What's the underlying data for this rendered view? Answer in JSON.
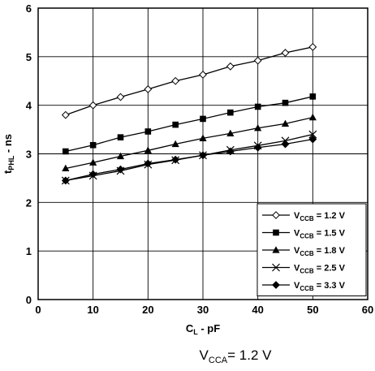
{
  "chart_data": {
    "type": "line",
    "title": "",
    "xlabel": {
      "main": "C",
      "sub": "L",
      "rest": " - pF"
    },
    "ylabel": {
      "main": "t",
      "sub": "PHL",
      "rest": " - ns"
    },
    "xlim": [
      0,
      60
    ],
    "ylim": [
      0,
      6
    ],
    "xticks": [
      0,
      10,
      20,
      30,
      40,
      50,
      60
    ],
    "yticks": [
      0,
      1,
      2,
      3,
      4,
      5,
      6
    ],
    "grid": true,
    "legend_position": "bottom-right",
    "x": [
      5,
      10,
      15,
      20,
      25,
      30,
      35,
      40,
      45,
      50
    ],
    "series": [
      {
        "label_main": "V",
        "label_sub": "CCB",
        "label_rest": " = 1.2 V",
        "marker": "diamond-open",
        "values": [
          3.8,
          4.0,
          4.17,
          4.33,
          4.5,
          4.63,
          4.8,
          4.92,
          5.08,
          5.2
        ]
      },
      {
        "label_main": "V",
        "label_sub": "CCB",
        "label_rest": " = 1.5 V",
        "marker": "square",
        "values": [
          3.05,
          3.18,
          3.34,
          3.46,
          3.6,
          3.72,
          3.85,
          3.97,
          4.05,
          4.18
        ]
      },
      {
        "label_main": "V",
        "label_sub": "CCB",
        "label_rest": " = 1.8 V",
        "marker": "triangle",
        "values": [
          2.7,
          2.82,
          2.95,
          3.07,
          3.2,
          3.32,
          3.42,
          3.53,
          3.62,
          3.75
        ]
      },
      {
        "label_main": "V",
        "label_sub": "CCB",
        "label_rest": " = 2.5 V",
        "marker": "x",
        "values": [
          2.45,
          2.55,
          2.65,
          2.78,
          2.87,
          2.97,
          3.08,
          3.17,
          3.27,
          3.4
        ]
      },
      {
        "label_main": "V",
        "label_sub": "CCB",
        "label_rest": " = 3.3 V",
        "marker": "diamond",
        "values": [
          2.45,
          2.58,
          2.68,
          2.8,
          2.88,
          2.97,
          3.05,
          3.13,
          3.2,
          3.3
        ]
      }
    ],
    "caption": {
      "main": "V",
      "sub": "CCA",
      "rest": "= 1.2 V"
    }
  }
}
